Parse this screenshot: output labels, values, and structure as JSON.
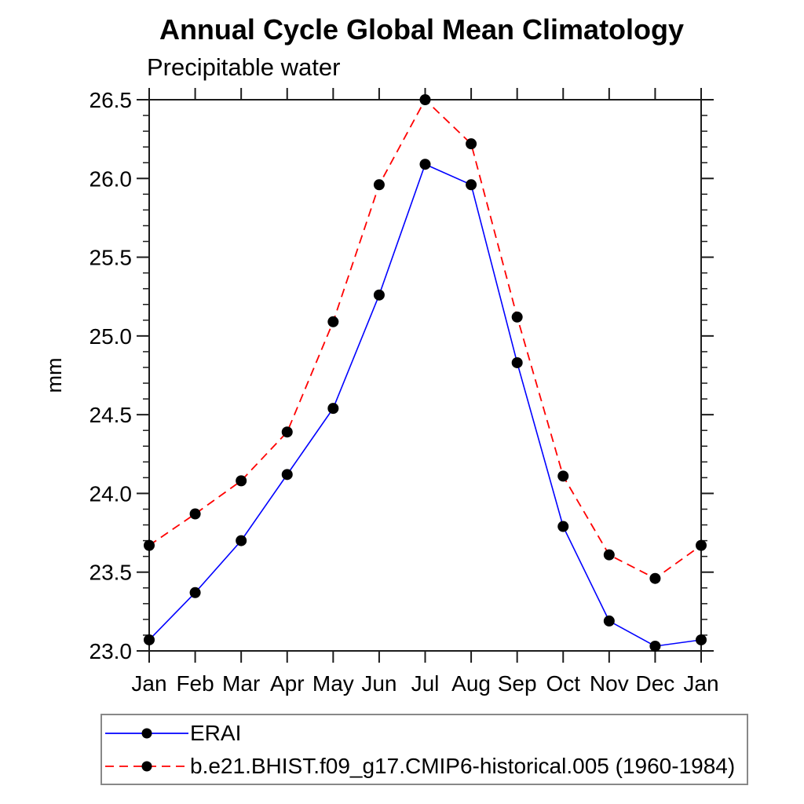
{
  "page": {
    "background_color": "#ffffff"
  },
  "chart_data": {
    "type": "line",
    "title": "Annual Cycle Global Mean Climatology",
    "subtitle": "Precipitable water",
    "ylabel": "mm",
    "xlabel": "",
    "categories": [
      "Jan",
      "Feb",
      "Mar",
      "Apr",
      "May",
      "Jun",
      "Jul",
      "Aug",
      "Sep",
      "Oct",
      "Nov",
      "Dec",
      "Jan"
    ],
    "ylim": [
      23.0,
      26.5
    ],
    "ytick_major_step": 0.5,
    "ytick_minor_step": 0.1,
    "ytick_labels": [
      "23.0",
      "23.5",
      "24.0",
      "24.5",
      "25.0",
      "25.5",
      "26.0",
      "26.5"
    ],
    "grid": "off",
    "frame": "box",
    "legend_position": "bottom-left",
    "series": [
      {
        "name": "ERAI",
        "color": "#0000ff",
        "line_style": "solid",
        "marker": "black-circle",
        "values": [
          23.07,
          23.37,
          23.7,
          24.12,
          24.54,
          25.26,
          26.09,
          25.96,
          24.83,
          23.79,
          23.19,
          23.03,
          23.07
        ]
      },
      {
        "name": "b.e21.BHIST.f09_g17.CMIP6-historical.005 (1960-1984)",
        "color": "#ff0000",
        "line_style": "dashed",
        "marker": "black-circle",
        "values": [
          23.67,
          23.87,
          24.08,
          24.39,
          25.09,
          25.96,
          26.5,
          26.22,
          25.12,
          24.11,
          23.61,
          23.46,
          23.67
        ]
      }
    ]
  },
  "legend": {
    "entries": [
      {
        "label": "ERAI",
        "color": "#0000ff",
        "line_style": "solid",
        "marker": "black-circle"
      },
      {
        "label": "b.e21.BHIST.f09_g17.CMIP6-historical.005 (1960-1984)",
        "color": "#ff0000",
        "line_style": "dashed",
        "marker": "black-circle"
      }
    ]
  }
}
